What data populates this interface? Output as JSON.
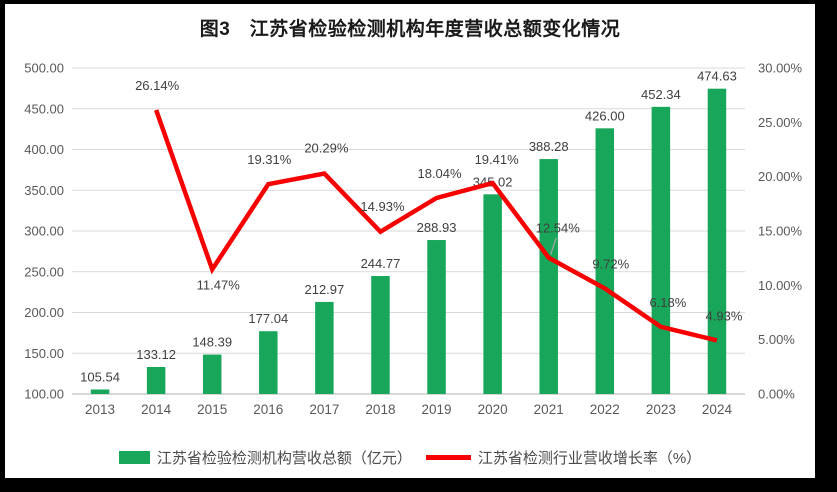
{
  "title": "图3　江苏省检验检测机构年度营收总额变化情况",
  "legend": {
    "items": [
      {
        "label": "江苏省检验检测机构营收总额（亿元）",
        "swatch": "bar",
        "color": "#18A75A"
      },
      {
        "label": "江苏省检测行业营收增长率（%）",
        "swatch": "line",
        "color": "#F60000"
      }
    ]
  },
  "frame": {
    "background": "#000000",
    "panel_background": "#FFFFFF"
  },
  "chart_data": {
    "type": "bar+line",
    "title": "图3　江苏省检验检测机构年度营收总额变化情况",
    "categories": [
      "2013",
      "2014",
      "2015",
      "2016",
      "2017",
      "2018",
      "2019",
      "2020",
      "2021",
      "2022",
      "2023",
      "2024"
    ],
    "series": [
      {
        "name": "江苏省检验检测机构营收总额（亿元）",
        "type": "bar",
        "axis": "left",
        "color": "#18A75A",
        "values": [
          105.54,
          133.12,
          148.39,
          177.04,
          212.97,
          244.77,
          288.93,
          345.02,
          388.28,
          426.0,
          452.34,
          474.63
        ],
        "labels": [
          "105.54",
          "133.12",
          "148.39",
          "177.04",
          "212.97",
          "244.77",
          "288.93",
          "345.02",
          "388.28",
          "426.00",
          "452.34",
          "474.63"
        ]
      },
      {
        "name": "江苏省检测行业营收增长率（%）",
        "type": "line",
        "axis": "right",
        "color": "#F60000",
        "values": [
          null,
          26.14,
          11.47,
          19.31,
          20.29,
          14.93,
          18.04,
          19.41,
          12.54,
          9.72,
          6.18,
          4.93
        ],
        "labels": [
          null,
          "26.14%",
          "11.47%",
          "19.31%",
          "20.29%",
          "14.93%",
          "18.04%",
          "19.41%",
          "12.54%",
          "9.72%",
          "6.18%",
          "4.93%"
        ]
      }
    ],
    "left_axis": {
      "min": 100,
      "max": 500,
      "step": 50,
      "ticks": [
        "100.00",
        "150.00",
        "200.00",
        "250.00",
        "300.00",
        "350.00",
        "400.00",
        "450.00",
        "500.00"
      ]
    },
    "right_axis": {
      "min": 0,
      "max": 30,
      "step": 5,
      "ticks": [
        "0.00%",
        "5.00%",
        "10.00%",
        "15.00%",
        "20.00%",
        "25.00%",
        "30.00%"
      ]
    },
    "gridlines": true,
    "legend_position": "bottom",
    "line_label_offsets": [
      null,
      [
        1,
        -20
      ],
      [
        6,
        20
      ],
      [
        1,
        -20
      ],
      [
        2,
        -21
      ],
      [
        2,
        -21
      ],
      [
        3,
        -20
      ],
      [
        4,
        -19
      ],
      [
        9,
        -25
      ],
      [
        6,
        -20
      ],
      [
        7,
        -20
      ],
      [
        7,
        -20
      ]
    ],
    "leader_line_index": 8,
    "colors": {
      "bar": "#18A75A",
      "line": "#F60000",
      "gridline": "#D9D9D9",
      "axis_line": "#BFBFBF",
      "leader_line": "#A6A6A6",
      "tick_text": "#595959",
      "data_label_text": "#404040"
    }
  }
}
